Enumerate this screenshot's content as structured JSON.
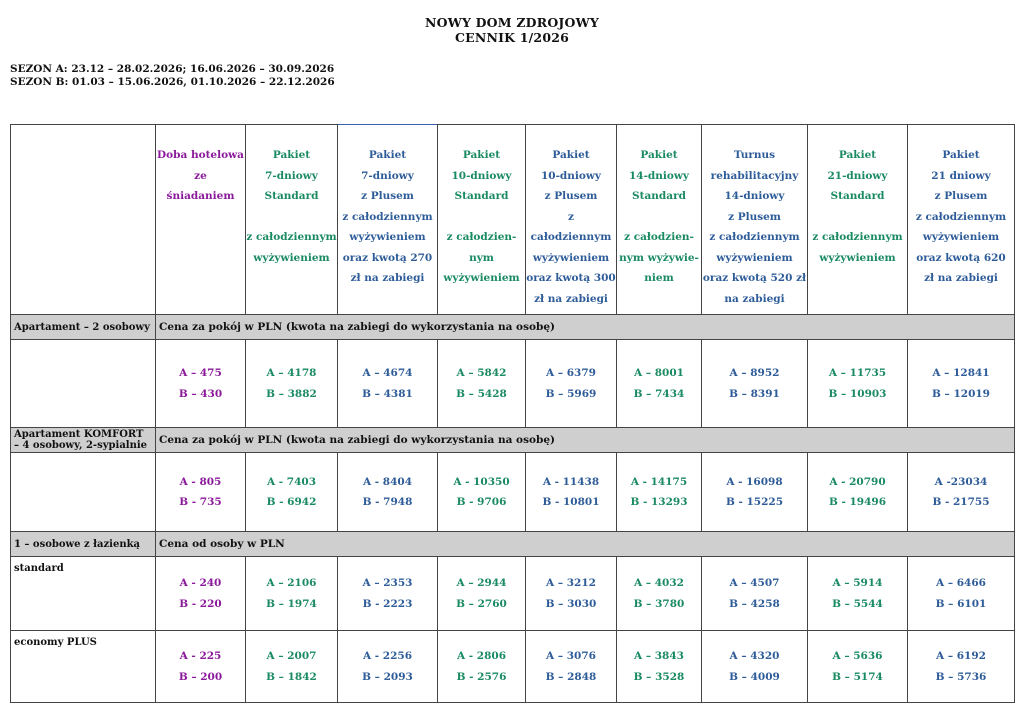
{
  "header": {
    "title_line1": "NOWY DOM ZDROJOWY",
    "title_line2": "CENNIK 1/2026",
    "season_a": "SEZON A:  23.12 – 28.02.2026; 16.06.2026 – 30.09.2026",
    "season_b": "SEZON B:  01.03 – 15.06.2026, 01.10.2026 – 22.12.2026"
  },
  "columns": [
    {
      "lines": [
        "Doba  hotelowa",
        "ze",
        "śniadaniem"
      ]
    },
    {
      "lines": [
        "Pakiet",
        "7-dniowy",
        "Standard",
        "",
        "z całodziennym",
        "wyżywieniem"
      ]
    },
    {
      "lines": [
        "Pakiet",
        "7-dniowy",
        "z Plusem",
        "z całodziennym",
        "wyżywieniem",
        "oraz kwotą 270",
        "zł na zabiegi"
      ]
    },
    {
      "lines": [
        "Pakiet",
        "10-dniowy",
        "Standard",
        "",
        "z całodzien-",
        "nym",
        "wyżywieniem"
      ]
    },
    {
      "lines": [
        "Pakiet",
        "10-dniowy",
        "z Plusem",
        "z całodziennym",
        "wyżywieniem",
        "oraz kwotą 300",
        "zł na zabiegi"
      ]
    },
    {
      "lines": [
        "Pakiet",
        "14-dniowy",
        "Standard",
        "",
        "z całodzien-",
        "nym wyżywie-",
        "niem"
      ]
    },
    {
      "lines": [
        "Turnus",
        "rehabilitacyjny",
        "14-dniowy",
        "z Plusem",
        "z całodziennym",
        "wyżywieniem",
        "oraz kwotą 520 zł",
        "na zabiegi"
      ]
    },
    {
      "lines": [
        "Pakiet",
        "21-dniowy",
        "Standard",
        "",
        "z całodziennym",
        "wyżywieniem"
      ]
    },
    {
      "lines": [
        "Pakiet",
        "21 dniowy",
        "z Plusem",
        "z całodziennym",
        "wyżywieniem",
        "oraz kwotą 620",
        "zł na zabiegi"
      ]
    }
  ],
  "sections": [
    {
      "label": "Apartament – 2 osobowy",
      "note": "Cena za pokój w PLN (kwota na zabiegi do wykorzystania na osobę)",
      "rows": [
        {
          "label": "",
          "a": [
            "A – 475",
            "A – 4178",
            "A – 4674",
            "A – 5842",
            "A – 6379",
            "A – 8001",
            "A –  8952",
            "A – 11735",
            "A – 12841"
          ],
          "b": [
            "B – 430",
            "B – 3882",
            "B – 4381",
            "B – 5428",
            "B – 5969",
            "B – 7434",
            "B – 8391",
            "B – 10903",
            "B – 12019"
          ]
        }
      ]
    },
    {
      "label": "Apartament KOMFORT",
      "label2": " – 4 osobowy, 2-sypialnie",
      "note": "Cena za pokój w PLN (kwota na zabiegi do wykorzystania na osobę)",
      "rows": [
        {
          "label": "",
          "a": [
            "A - 805",
            "A - 7403",
            "A - 8404",
            "A - 10350",
            "A - 11438",
            "A - 14175",
            "A - 16098",
            "A - 20790",
            "A -23034"
          ],
          "b": [
            "B - 735",
            "B - 6942",
            "B - 7948",
            "B - 9706",
            "B - 10801",
            "B - 13293",
            "B - 15225",
            "B - 19496",
            "B - 21755"
          ]
        }
      ]
    },
    {
      "label": "1 – osobowe z łazienką",
      "note": "Cena od osoby w PLN",
      "rows": [
        {
          "label": "standard",
          "a": [
            "A - 240",
            "A – 2106",
            "A – 2353",
            "A – 2944",
            "A – 3212",
            "A – 4032",
            "A – 4507",
            "A – 5914",
            "A – 6466"
          ],
          "b": [
            "B - 220",
            "B – 1974",
            "B - 2223",
            "B – 2760",
            "B – 3030",
            "B – 3780",
            "B – 4258",
            "B – 5544",
            "B – 6101"
          ]
        },
        {
          "label": "economy PLUS",
          "a": [
            "A - 225",
            "A – 2007",
            "A -  2256",
            "A -  2806",
            "A – 3076",
            "A – 3843",
            "A – 4320",
            "A – 5636",
            "A – 6192"
          ],
          "b": [
            "B – 200",
            "B – 1842",
            "B – 2093",
            "B -  2576",
            "B – 2848",
            "B – 3528",
            "B – 4009",
            "B – 5174",
            "B – 5736"
          ]
        }
      ]
    }
  ],
  "colors": {
    "purple": "#8b1a9b",
    "green": "#1a8a62",
    "blue": "#2e5c99",
    "section_bg": "#cfcfcf"
  }
}
